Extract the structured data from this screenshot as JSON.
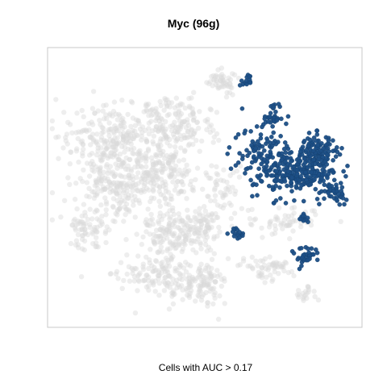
{
  "chart_data": {
    "type": "scatter",
    "title": "Myc (96g)",
    "xlabel": "Cells with AUC > 0.17",
    "ylabel": "",
    "grid": false,
    "legend": "none",
    "xlim": [
      0,
      100
    ],
    "ylim": [
      0,
      100
    ],
    "colors": {
      "inactive": "#dadada",
      "active": "#1c4f86",
      "frame": "#c8c8c8"
    },
    "series": [
      {
        "role": "inactive",
        "clusters": [
          {
            "cx": 13,
            "cy": 64,
            "rx": 7,
            "ry": 7,
            "n": 70
          },
          {
            "cx": 22,
            "cy": 48,
            "rx": 14,
            "ry": 13,
            "n": 260
          },
          {
            "cx": 20,
            "cy": 32,
            "rx": 13,
            "ry": 11,
            "n": 210
          },
          {
            "cx": 40,
            "cy": 28,
            "rx": 12,
            "ry": 9,
            "n": 180
          },
          {
            "cx": 38,
            "cy": 45,
            "rx": 9,
            "ry": 10,
            "n": 140
          },
          {
            "cx": 38,
            "cy": 66,
            "rx": 9,
            "ry": 8,
            "n": 130
          },
          {
            "cx": 37,
            "cy": 82,
            "rx": 13,
            "ry": 7,
            "n": 150
          },
          {
            "cx": 50,
            "cy": 84,
            "rx": 6,
            "ry": 7,
            "n": 90
          },
          {
            "cx": 48,
            "cy": 65,
            "rx": 6,
            "ry": 8,
            "n": 80
          },
          {
            "cx": 69,
            "cy": 78,
            "rx": 7,
            "ry": 4,
            "n": 60
          },
          {
            "cx": 76,
            "cy": 62,
            "rx": 10,
            "ry": 5,
            "n": 60
          },
          {
            "cx": 56,
            "cy": 12,
            "rx": 5,
            "ry": 4,
            "n": 50
          },
          {
            "cx": 55,
            "cy": 52,
            "rx": 6,
            "ry": 9,
            "n": 60
          },
          {
            "cx": 82,
            "cy": 88,
            "rx": 3,
            "ry": 3,
            "n": 20
          }
        ]
      },
      {
        "role": "active",
        "clusters": [
          {
            "cx": 81,
            "cy": 45,
            "rx": 10,
            "ry": 7,
            "n": 220
          },
          {
            "cx": 86,
            "cy": 37,
            "rx": 6,
            "ry": 5,
            "n": 110
          },
          {
            "cx": 68,
            "cy": 38,
            "rx": 7,
            "ry": 11,
            "n": 120
          },
          {
            "cx": 91,
            "cy": 52,
            "rx": 3,
            "ry": 3,
            "n": 30
          },
          {
            "cx": 72,
            "cy": 25,
            "rx": 4,
            "ry": 4,
            "n": 30
          },
          {
            "cx": 63,
            "cy": 12,
            "rx": 2,
            "ry": 3,
            "n": 14
          },
          {
            "cx": 82,
            "cy": 61,
            "rx": 2,
            "ry": 1.5,
            "n": 14
          },
          {
            "cx": 60,
            "cy": 66,
            "rx": 2.5,
            "ry": 2,
            "n": 16
          },
          {
            "cx": 82,
            "cy": 75,
            "rx": 4,
            "ry": 3,
            "n": 34
          },
          {
            "cx": 93,
            "cy": 54,
            "rx": 2,
            "ry": 2,
            "n": 10
          }
        ]
      }
    ]
  }
}
